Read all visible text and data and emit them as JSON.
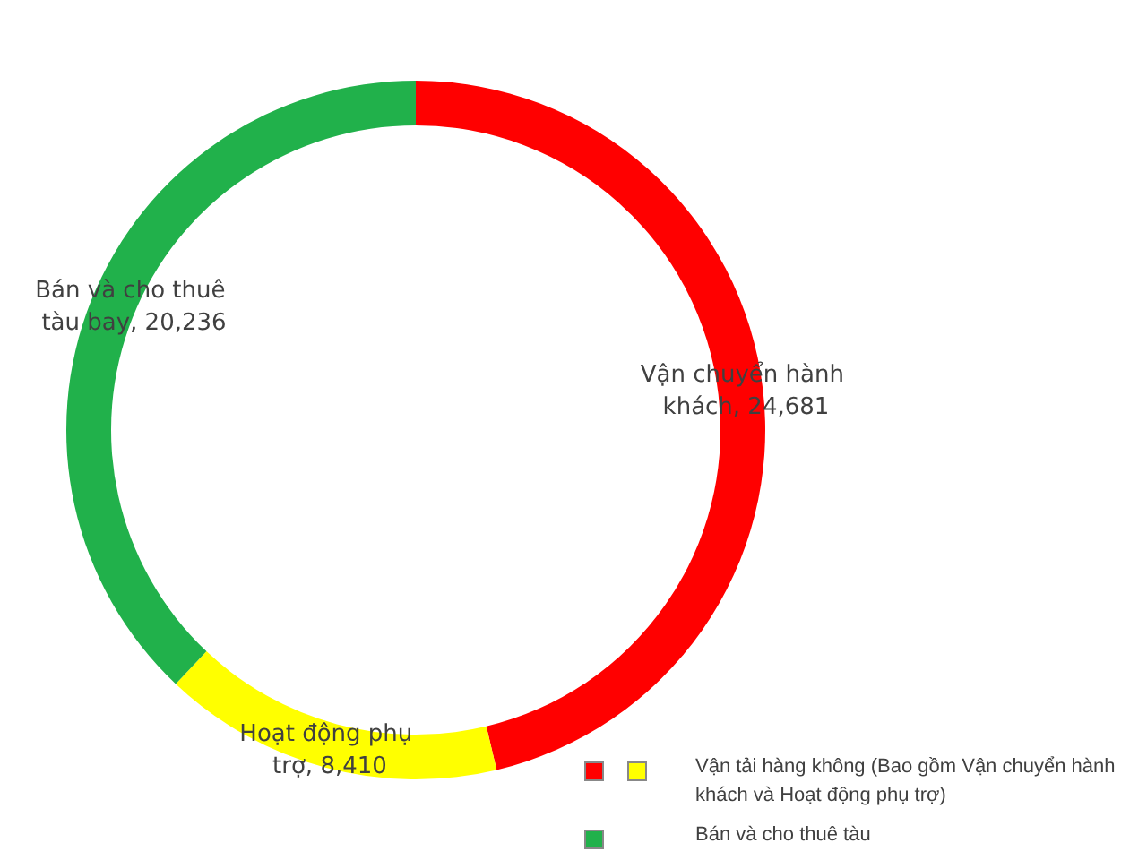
{
  "chart_data": {
    "type": "donut",
    "categories": [
      "Vận chuyển hành khách",
      "Hoạt động phụ trợ",
      "Bán và cho thuê tàu bay"
    ],
    "values": [
      24681,
      8410,
      20236
    ],
    "value_labels": [
      "24,681",
      "8,410",
      "20,236"
    ],
    "colors": [
      "#ff0000",
      "#ffff00",
      "#21b14b"
    ],
    "annotations": [
      "Vận tải hàng không (Bao gồm Vận chuyển hành khách và Hoạt động phụ trợ)",
      "Bán và cho thuê tàu"
    ]
  }
}
